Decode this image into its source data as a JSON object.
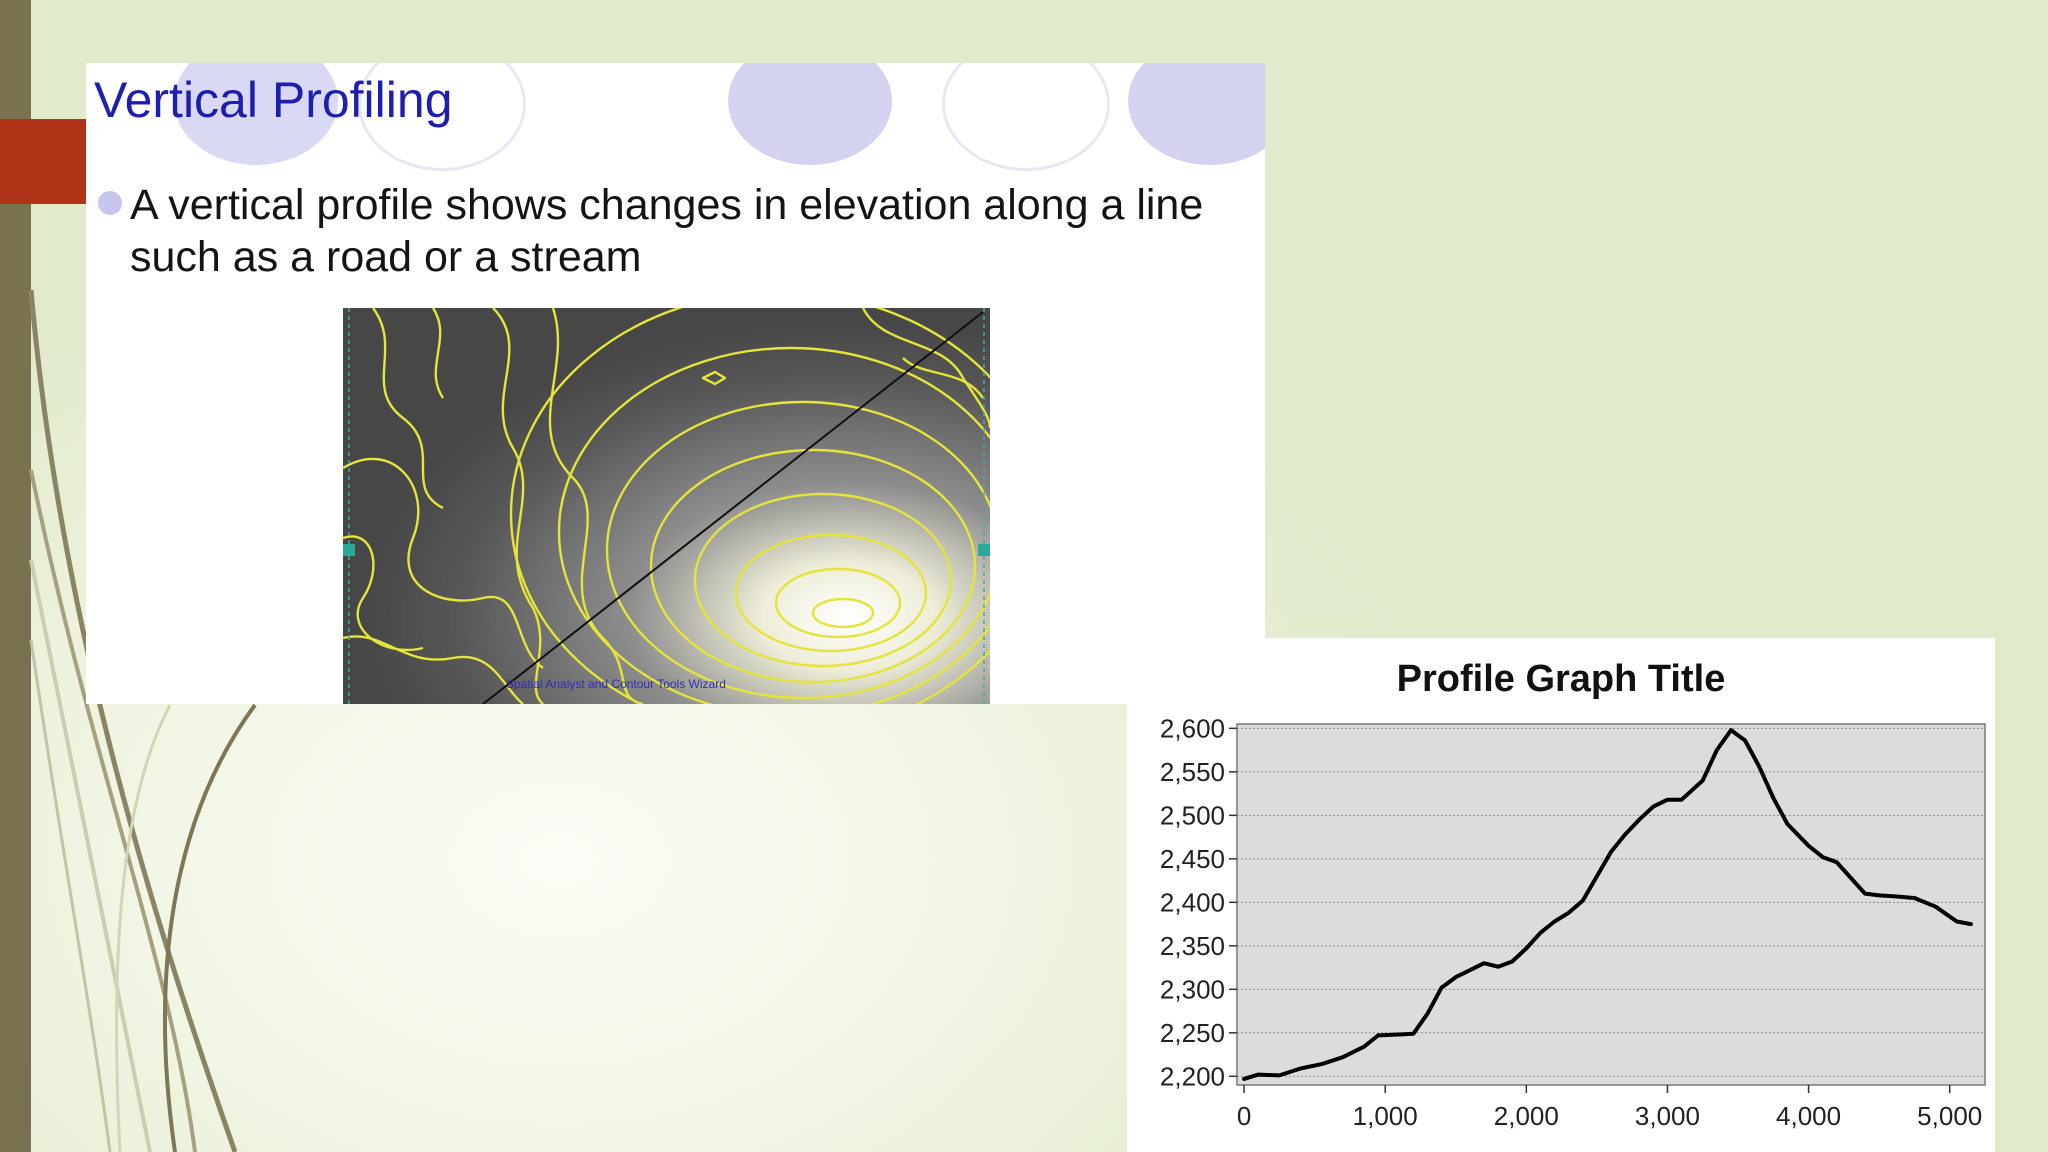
{
  "slide": {
    "title": "Vertical Profiling",
    "bullet": "A vertical profile shows changes in elevation along a line such as a road or a stream",
    "map_credit": "Spatial Analyst and Contour Tools Wizard"
  },
  "colors": {
    "title": "#1f1faf",
    "accent_red": "#b03318",
    "left_strip": "#797251",
    "contour": "#e4e43a",
    "profile_line": "#000000",
    "plot_bg": "#dcdcdc"
  },
  "chart_data": {
    "type": "line",
    "title": "Profile Graph Title",
    "xlabel": "",
    "ylabel": "",
    "xlim": [
      -50,
      5250
    ],
    "ylim": [
      2190,
      2605
    ],
    "xticks": [
      0,
      1000,
      2000,
      3000,
      4000,
      5000
    ],
    "xtick_labels": [
      "0",
      "1,000",
      "2,000",
      "3,000",
      "4,000",
      "5,000"
    ],
    "yticks": [
      2200,
      2250,
      2300,
      2350,
      2400,
      2450,
      2500,
      2550,
      2600
    ],
    "ytick_labels": [
      "2,200",
      "2,250",
      "2,300",
      "2,350",
      "2,400",
      "2,450",
      "2,500",
      "2,550",
      "2,600"
    ],
    "grid": "horizontal dotted",
    "legend": "none",
    "series": [
      {
        "x": [
          0,
          100,
          250,
          400,
          550,
          700,
          850,
          950,
          1100,
          1200,
          1300,
          1400,
          1500,
          1600,
          1700,
          1800,
          1900,
          2000,
          2100,
          2200,
          2300,
          2400,
          2500,
          2600,
          2700,
          2800,
          2900,
          3000,
          3100,
          3250,
          3350,
          3450,
          3550,
          3650,
          3750,
          3850,
          4000,
          4100,
          4200,
          4300,
          4400,
          4500,
          4600,
          4750,
          4900,
          5050,
          5150
        ],
        "y": [
          2197,
          2202,
          2201,
          2209,
          2214,
          2222,
          2234,
          2247,
          2248,
          2249,
          2272,
          2302,
          2314,
          2322,
          2330,
          2326,
          2332,
          2347,
          2365,
          2378,
          2388,
          2402,
          2430,
          2458,
          2478,
          2495,
          2510,
          2518,
          2518,
          2540,
          2575,
          2598,
          2586,
          2556,
          2520,
          2490,
          2465,
          2452,
          2446,
          2428,
          2410,
          2408,
          2407,
          2405,
          2395,
          2378,
          2375
        ]
      }
    ]
  }
}
